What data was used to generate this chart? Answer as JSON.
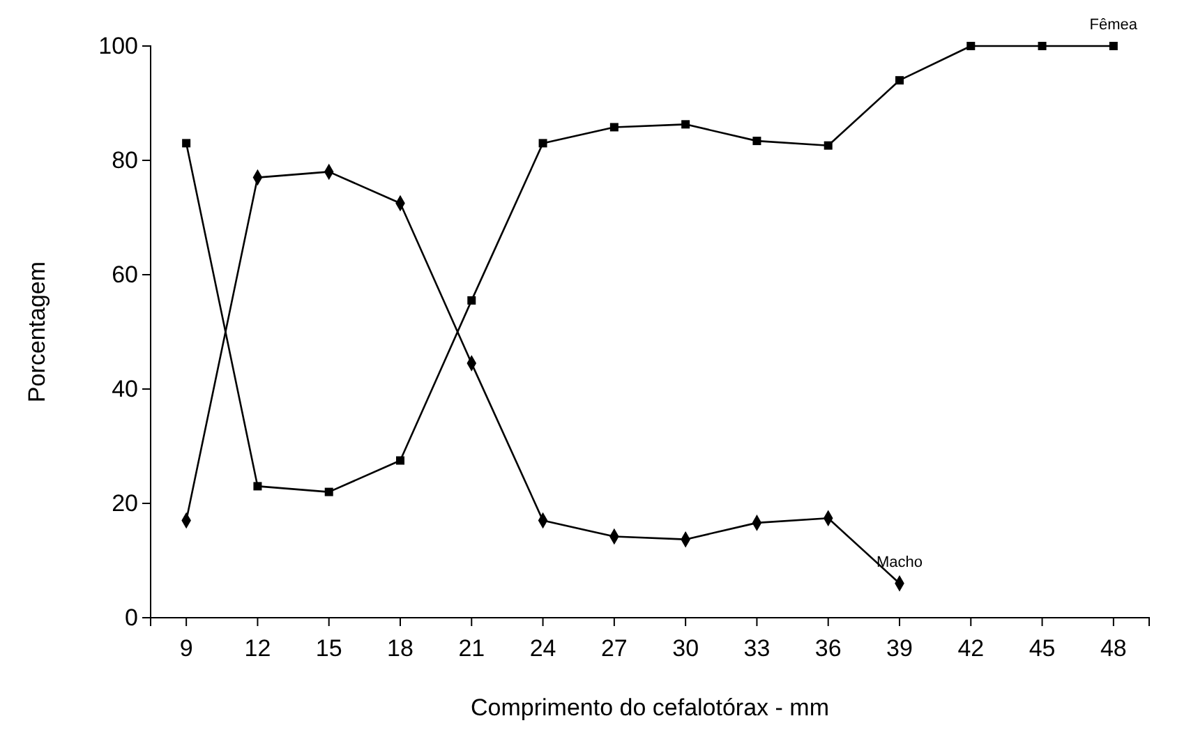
{
  "chart_data": {
    "type": "line",
    "xlabel": "Comprimento do cefalotórax - mm",
    "ylabel": "Porcentagem",
    "x": [
      9,
      12,
      15,
      18,
      21,
      24,
      27,
      30,
      33,
      36,
      39,
      42,
      45,
      48
    ],
    "xlim": [
      7.5,
      49.5
    ],
    "xticks": [
      9,
      12,
      15,
      18,
      21,
      24,
      27,
      30,
      33,
      36,
      39,
      42,
      45,
      48
    ],
    "ylim": [
      0,
      100
    ],
    "yticks": [
      0,
      20,
      40,
      60,
      80,
      100
    ],
    "grid": false,
    "legend": false,
    "series": [
      {
        "name": "Fêmea",
        "color": "#000000",
        "marker": "square",
        "values": [
          83,
          23,
          22,
          27.5,
          55.5,
          83,
          85.8,
          86.3,
          83.4,
          82.6,
          94,
          100,
          100,
          100
        ]
      },
      {
        "name": "Macho",
        "color": "#000000",
        "marker": "diamond",
        "values": [
          17,
          77,
          78,
          72.5,
          44.5,
          17,
          14.2,
          13.7,
          16.6,
          17.4,
          6,
          null,
          null,
          null
        ]
      }
    ]
  }
}
